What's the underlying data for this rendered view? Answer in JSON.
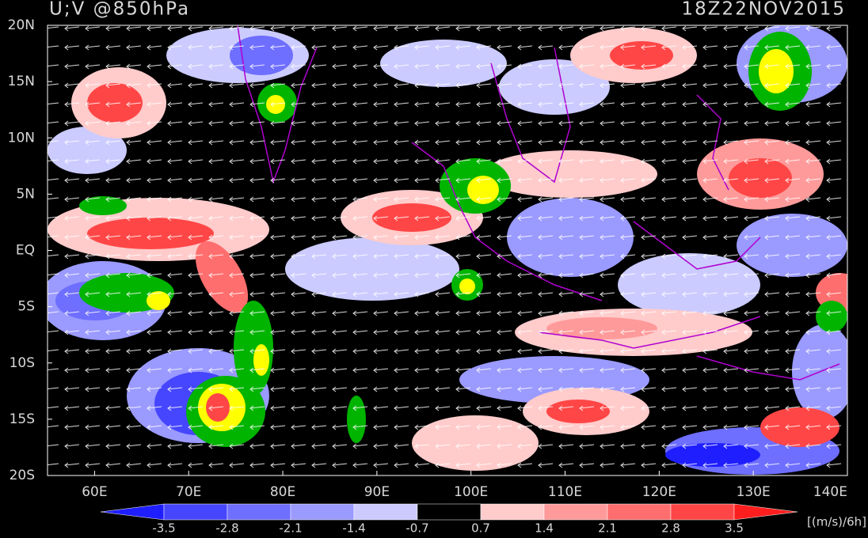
{
  "map": {
    "title": "U;V @850hPa",
    "time": "18Z22NOV2015",
    "lat_labels": [
      "20N",
      "15N",
      "10N",
      "5N",
      "EQ",
      "5S",
      "10S",
      "15S",
      "20S"
    ],
    "lon_labels": [
      "60E",
      "70E",
      "80E",
      "90E",
      "100E",
      "110E",
      "120E",
      "130E",
      "140E"
    ]
  },
  "colorbar": {
    "labels": [
      "-3.5",
      "-2.8",
      "-2.1",
      "-1.4",
      "-0.7",
      "0.7",
      "1.4",
      "2.1",
      "2.8",
      "3.5"
    ],
    "colors": [
      "#1e1eff",
      "#4646ff",
      "#6e6eff",
      "#9a9aff",
      "#cbcbff",
      "#000000",
      "#ffcbcb",
      "#ff9a9a",
      "#ff6e6e",
      "#ff4646",
      "#ff1e1e"
    ],
    "units": "[(m/s)/6h]"
  }
}
